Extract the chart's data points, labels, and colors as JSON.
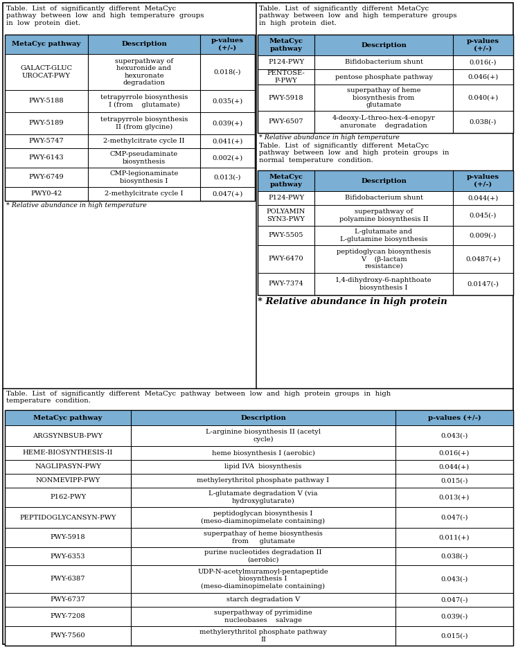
{
  "bg_color": "#ffffff",
  "header_color": "#7bafd4",
  "border_color": "#000000",
  "text_color": "#000000",
  "table1_title": "Table.  List  of  significantly  different  MetaCyc\npathway  between  low  and  high  temperature  groups\nin  low  protein  diet.",
  "table1_headers": [
    "MetaCyc pathway",
    "Description",
    "p-values\n(+/-)"
  ],
  "table1_rows": [
    [
      "GALACT-GLUC\nUROCAT-PWY",
      "superpathway of\nhexuronide and\nhexuronate\ndegradation",
      "0.018(-)"
    ],
    [
      "PWY-5188",
      "tetrapyrrole biosynthesis\nI (from    glutamate)",
      "0.035(+)"
    ],
    [
      "PWY-5189",
      "tetrapyrrole biosynthesis\nII (from glycine)",
      "0.039(+)"
    ],
    [
      "PWY-5747",
      "2-methylcitrate cycle II",
      "0.041(+)"
    ],
    [
      "PWY-6143",
      "CMP-pseudaminate\nbiosynthesis",
      "0.002(+)"
    ],
    [
      "PWY-6749",
      "CMP-legionaminate\nbiosynthesis I",
      "0.013(-)"
    ],
    [
      "PWY0-42",
      "2-methylcitrate cycle I",
      "0.047(+)"
    ]
  ],
  "table1_footnote": "* Relative abundance in high temperature",
  "table2_title": "Table.  List  of  significantly  different  MetaCyc\npathway  between  low  and  high  temperature  groups\nin  high  protein  diet.",
  "table2_headers": [
    "MetaCyc\npathway",
    "Description",
    "p-values\n(+/-)"
  ],
  "table2_rows": [
    [
      "P124-PWY",
      "Bifidobacterium shunt",
      "0.016(-)"
    ],
    [
      "PENTOSE-\nP-PWY",
      "pentose phosphate pathway",
      "0.046(+)"
    ],
    [
      "PWY-5918",
      "superpathay of heme\nbiosynthesis from\nglutamate",
      "0.040(+)"
    ],
    [
      "PWY-6507",
      "4-deoxy-L-threo-hex-4-enopyr\nanuronate    degradation",
      "0.038(-)"
    ]
  ],
  "table2_footnote": "* Relative abundance in high temperature",
  "table3_title": "Table.  List  of  significantly  different  MetaCyc\npathway  between  low  and  high  protein  groups  in\nnormal  temperature  condition.",
  "table3_headers": [
    "MetaCyc\npathway",
    "Description",
    "p-values\n(+/-)"
  ],
  "table3_rows": [
    [
      "P124-PWY",
      "Bifidobacterium shunt",
      "0.044(+)"
    ],
    [
      "POLYAMIN\nSYN3-PWY",
      "superpathway of\npolyamine biosynthesis II",
      "0.045(-)"
    ],
    [
      "PWY-5505",
      "L-glutamate and\nL-glutamine biosynthesis",
      "0.009(-)"
    ],
    [
      "PWY-6470",
      "peptidoglycan biosynthesis\nV    (β-lactam\nresistance)",
      "0.0487(+)"
    ],
    [
      "PWY-7374",
      "1,4-dihydroxy-6-naphthoate\nbiosynthesis I",
      "0.0147(-)"
    ]
  ],
  "table3_footnote": "* Relative abundance in high protein",
  "table4_title": "Table.  List  of  significantly  different  MetaCyc  pathway  between  low  and  high  protein  groups  in  high\ntemperature  condition.",
  "table4_headers": [
    "MetaCyc pathway",
    "Description",
    "p-values (+/-)"
  ],
  "table4_rows": [
    [
      "ARGSYNBSUB-PWY",
      "L-arginine biosynthesis II (acetyl\ncycle)",
      "0.043(-)"
    ],
    [
      "HEME-BIOSYNTHESIS-II",
      "heme biosynthesis I (aerobic)",
      "0.016(+)"
    ],
    [
      "NAGLIPASYN-PWY",
      "lipid IVA  biosynthesis",
      "0.044(+)"
    ],
    [
      "NONMEVIPP-PWY",
      "methylerythritol phosphate pathway I",
      "0.015(-)"
    ],
    [
      "P162-PWY",
      "L-glutamate degradation V (via\nhydroxyglutarate)",
      "0.013(+)"
    ],
    [
      "PEPTIDOGLYCANSYN-PWY",
      "peptidoglycan biosynthesis I\n(meso-diaminopimelate containing)",
      "0.047(-)"
    ],
    [
      "PWY-5918",
      "superpathay of heme biosynthesis\nfrom     glutamate",
      "0.011(+)"
    ],
    [
      "PWY-6353",
      "purine nucleotides degradation II\n(aerobic)",
      "0.038(-)"
    ],
    [
      "PWY-6387",
      "UDP-N-acetylmuramoyl-pentapeptide\nbiosynthesis I\n(meso-diaminopimelate containing)",
      "0.043(-)"
    ],
    [
      "PWY-6737",
      "starch degradation V",
      "0.047(-)"
    ],
    [
      "PWY-7208",
      "superpathway of pyrimidine\nnucleobases    salvage",
      "0.039(-)"
    ],
    [
      "PWY-7560",
      "methylerythritol phosphate pathway\nII",
      "0.015(-)"
    ]
  ],
  "table4_footnote": ""
}
